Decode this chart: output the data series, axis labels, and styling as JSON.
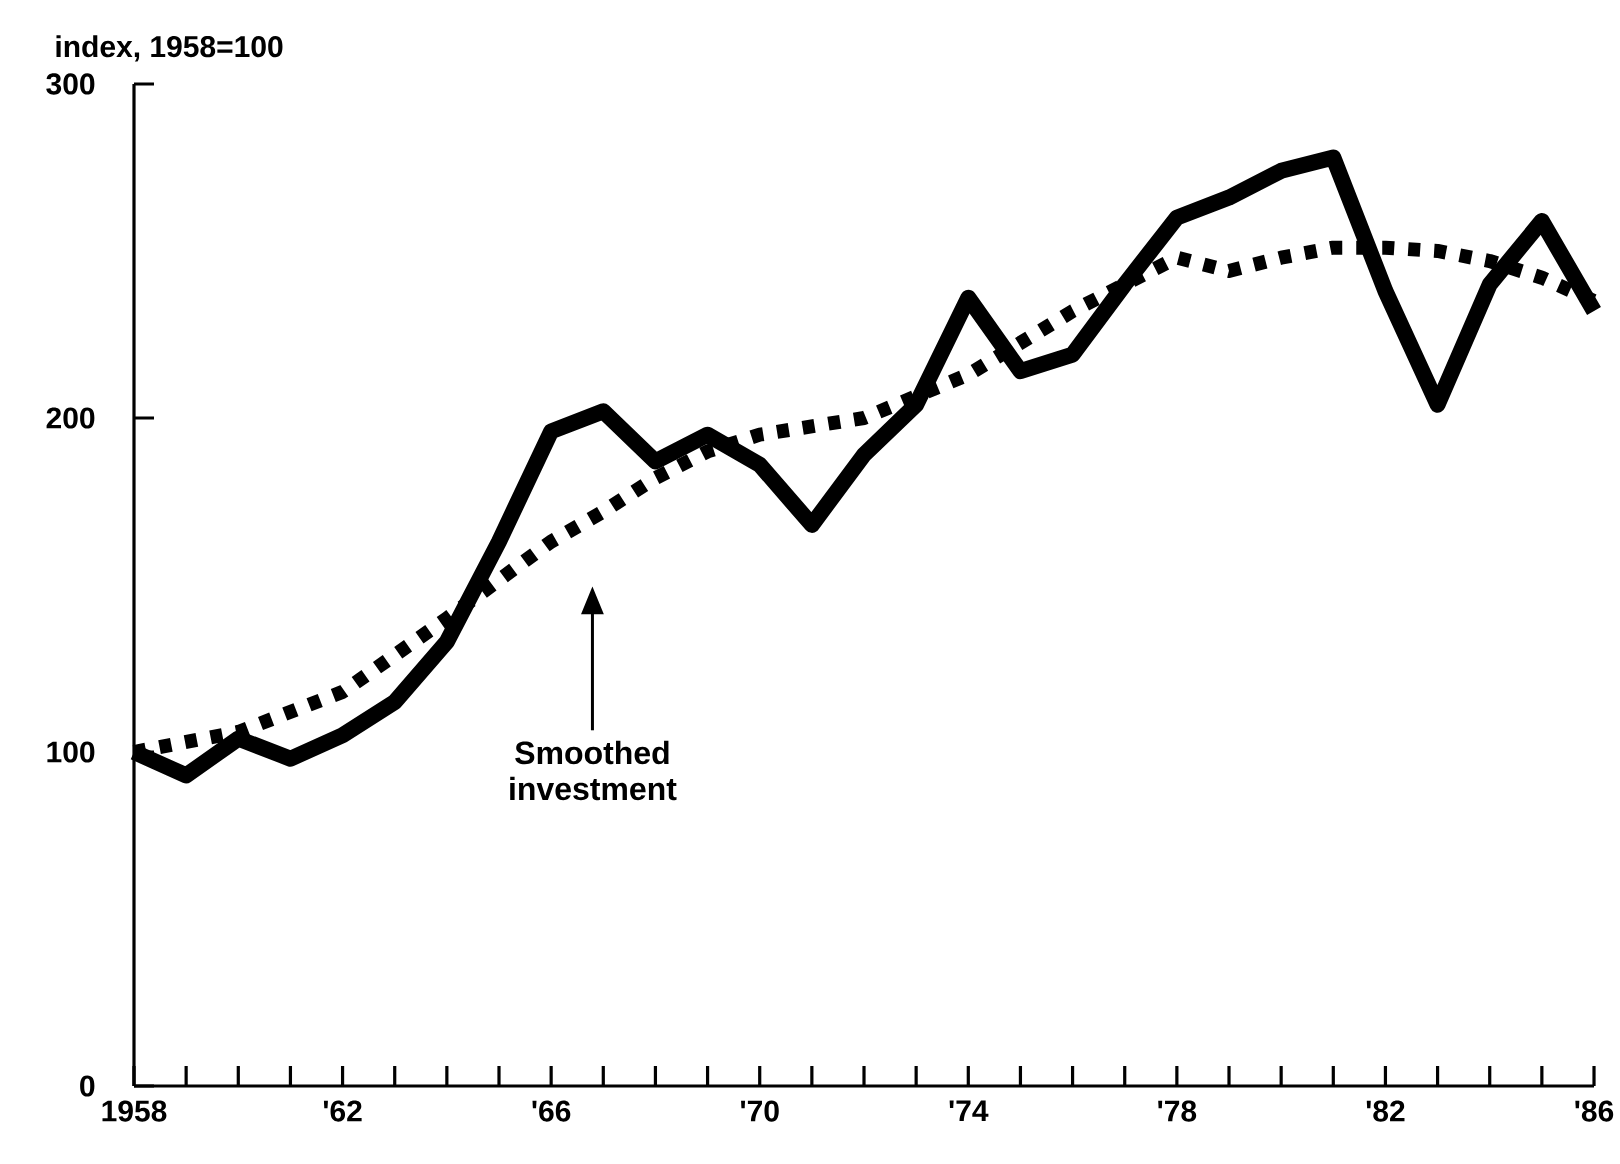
{
  "chart_data": {
    "type": "line",
    "ylabel": "index, 1958=100",
    "x": [
      1958,
      1959,
      1960,
      1961,
      1962,
      1963,
      1964,
      1965,
      1966,
      1967,
      1968,
      1969,
      1970,
      1971,
      1972,
      1973,
      1974,
      1975,
      1976,
      1977,
      1978,
      1979,
      1980,
      1981,
      1982,
      1983,
      1984,
      1985,
      1986
    ],
    "series": [
      {
        "color": "#000000",
        "line_style": "solid",
        "values": [
          100,
          93,
          104,
          98,
          105,
          115,
          133,
          163,
          196,
          202,
          187,
          195,
          186,
          168,
          189,
          204,
          236,
          214,
          219,
          240,
          260,
          266,
          274,
          278,
          238,
          204,
          240,
          259,
          232
        ]
      },
      {
        "color": "#000000",
        "line_style": "dotted",
        "x": [
          1958,
          1960,
          1962,
          1964,
          1966,
          1967,
          1968,
          1969,
          1970,
          1972,
          1974,
          1976,
          1978,
          1979,
          1980,
          1981,
          1982,
          1983,
          1984,
          1985,
          1986
        ],
        "values": [
          100,
          106,
          118,
          140,
          163,
          172,
          182,
          190,
          195,
          200,
          213,
          232,
          248,
          244,
          248,
          251,
          251,
          250,
          247,
          242,
          235
        ]
      }
    ],
    "annotations": [
      "Smoothed investment"
    ],
    "xlim": [
      1958,
      1986
    ],
    "ylim": [
      0,
      300
    ],
    "xticks": [
      {
        "value": 1958,
        "label": "1958"
      },
      {
        "value": 1959,
        "label": null
      },
      {
        "value": 1960,
        "label": null
      },
      {
        "value": 1961,
        "label": null
      },
      {
        "value": 1962,
        "label": "'62"
      },
      {
        "value": 1963,
        "label": null
      },
      {
        "value": 1964,
        "label": null
      },
      {
        "value": 1965,
        "label": null
      },
      {
        "value": 1966,
        "label": "'66"
      },
      {
        "value": 1967,
        "label": null
      },
      {
        "value": 1968,
        "label": null
      },
      {
        "value": 1969,
        "label": null
      },
      {
        "value": 1970,
        "label": "'70"
      },
      {
        "value": 1971,
        "label": null
      },
      {
        "value": 1972,
        "label": null
      },
      {
        "value": 1973,
        "label": null
      },
      {
        "value": 1974,
        "label": "'74"
      },
      {
        "value": 1975,
        "label": null
      },
      {
        "value": 1976,
        "label": null
      },
      {
        "value": 1977,
        "label": null
      },
      {
        "value": 1978,
        "label": "'78"
      },
      {
        "value": 1979,
        "label": null
      },
      {
        "value": 1980,
        "label": null
      },
      {
        "value": 1981,
        "label": null
      },
      {
        "value": 1982,
        "label": "'82"
      },
      {
        "value": 1983,
        "label": null
      },
      {
        "value": 1984,
        "label": null
      },
      {
        "value": 1985,
        "label": null
      },
      {
        "value": 1986,
        "label": "'86"
      }
    ],
    "yticks": [
      0,
      100,
      200,
      300
    ]
  }
}
